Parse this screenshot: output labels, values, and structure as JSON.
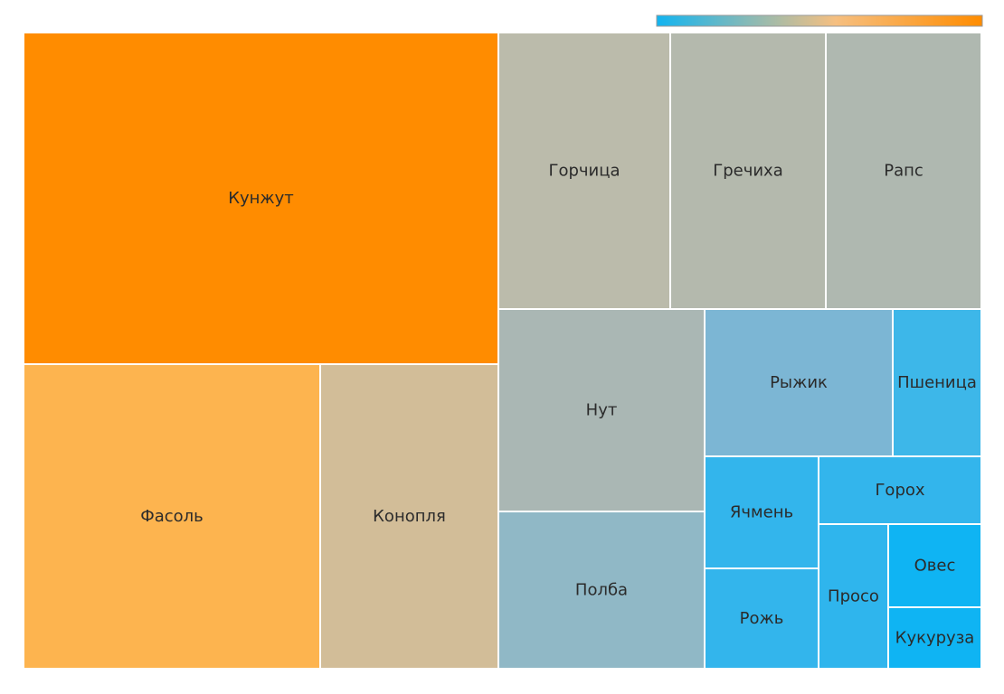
{
  "chart_data": {
    "type": "treemap",
    "color_scale": {
      "min_color": "#12b4f0",
      "mid_color": "#f6bf80",
      "max_color": "#ff8c00"
    },
    "items": [
      {
        "name": "Кунжут",
        "value": 29.0,
        "color": "#ff8c00"
      },
      {
        "name": "Фасоль",
        "value": 15.3,
        "color": "#fdb44f"
      },
      {
        "name": "Конопля",
        "value": 9.1,
        "color": "#d2bd98"
      },
      {
        "name": "Горчица",
        "value": 7.5,
        "color": "#bbbbab"
      },
      {
        "name": "Гречиха",
        "value": 6.8,
        "color": "#b4b9ad"
      },
      {
        "name": "Рапс",
        "value": 6.7,
        "color": "#afb8b0"
      },
      {
        "name": "Нут",
        "value": 6.7,
        "color": "#aab7b4"
      },
      {
        "name": "Полба",
        "value": 6.6,
        "color": "#90b8c6"
      },
      {
        "name": "Рыжик",
        "value": 4.6,
        "color": "#7cb6d4"
      },
      {
        "name": "Пшеница",
        "value": 1.8,
        "color": "#3db7e9"
      },
      {
        "name": "Ячмень",
        "value": 1.6,
        "color": "#33b5ec"
      },
      {
        "name": "Рожь",
        "value": 1.5,
        "color": "#33b5ec"
      },
      {
        "name": "Горох",
        "value": 1.2,
        "color": "#33b5ec"
      },
      {
        "name": "Просо",
        "value": 1.0,
        "color": "#2fb5ed"
      },
      {
        "name": "Овес",
        "value": 0.9,
        "color": "#0fb4f3"
      },
      {
        "name": "Кукуруза",
        "value": 0.7,
        "color": "#0fb4f3"
      }
    ]
  }
}
